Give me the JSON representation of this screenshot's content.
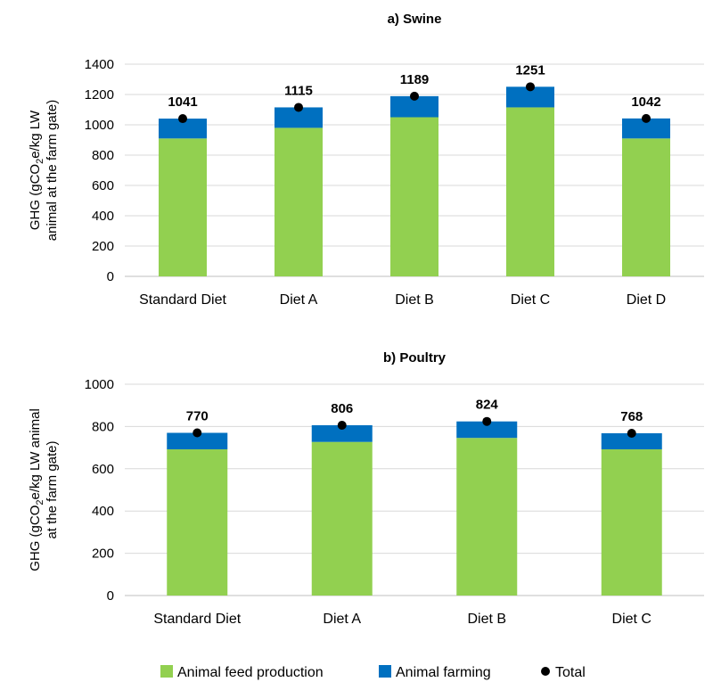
{
  "colors": {
    "feed": "#92d050",
    "farming": "#0070c0",
    "total": "#000000",
    "gridline": "#d9d9d9",
    "axis": "#bfbfbf"
  },
  "legend": {
    "feed_label": "Animal feed production",
    "farming_label": "Animal farming",
    "total_label": "Total"
  },
  "chart_data": [
    {
      "type": "bar",
      "stacked": true,
      "title": "a) Swine",
      "ylabel_line1": "GHG (gCO",
      "ylabel_sub": "2",
      "ylabel_rest": "e/kg  LW",
      "ylabel_line2": "animal at the farm gate)",
      "ylim": [
        0,
        1400
      ],
      "yticks": [
        0,
        200,
        400,
        600,
        800,
        1000,
        1200,
        1400
      ],
      "grid": true,
      "categories": [
        "Standard Diet",
        "Diet A",
        "Diet B",
        "Diet C",
        "Diet D"
      ],
      "series": [
        {
          "name": "Animal feed production",
          "values": [
            910,
            980,
            1050,
            1115,
            910
          ]
        },
        {
          "name": "Animal farming",
          "values": [
            131,
            135,
            139,
            136,
            132
          ]
        }
      ],
      "totals": [
        1041,
        1115,
        1189,
        1251,
        1042
      ]
    },
    {
      "type": "bar",
      "stacked": true,
      "title": "b) Poultry",
      "ylabel_line1": "GHG (gCO",
      "ylabel_sub": "2",
      "ylabel_rest": "e/kg LW animal",
      "ylabel_line2": "at the farm gate)",
      "ylim": [
        0,
        1000
      ],
      "yticks": [
        0,
        200,
        400,
        600,
        800,
        1000
      ],
      "grid": true,
      "categories": [
        "Standard Diet",
        "Diet A",
        "Diet B",
        "Diet C"
      ],
      "series": [
        {
          "name": "Animal feed production",
          "values": [
            692,
            727,
            746,
            692
          ]
        },
        {
          "name": "Animal farming",
          "values": [
            78,
            79,
            78,
            76
          ]
        }
      ],
      "totals": [
        770,
        806,
        824,
        768
      ]
    }
  ]
}
